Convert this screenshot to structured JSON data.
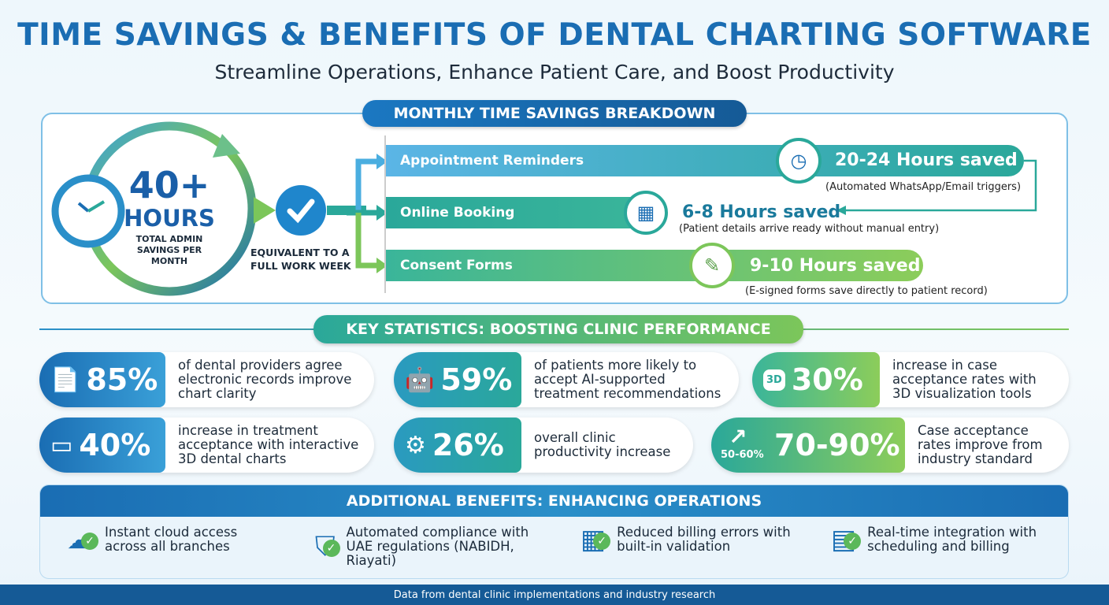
{
  "title": "TIME SAVINGS & BENEFITS OF DENTAL CHARTING SOFTWARE",
  "subtitle": "Streamline Operations, Enhance Patient Care, and Boost Productivity",
  "monthly": {
    "header": "MONTHLY TIME SAVINGS BREAKDOWN",
    "big_number": "40+",
    "big_unit": "HOURS",
    "big_caption": "TOTAL ADMIN SAVINGS PER MONTH",
    "equivalent": "EQUIVALENT TO A FULL WORK WEEK",
    "items": [
      {
        "label": "Appointment Reminders",
        "saved": "20-24 Hours saved",
        "note": "(Automated WhatsApp/Email triggers)",
        "icon": "clock-icon"
      },
      {
        "label": "Online Booking",
        "saved": "6-8 Hours saved",
        "note": "(Patient details arrive ready without manual entry)",
        "icon": "calendar-icon"
      },
      {
        "label": "Consent Forms",
        "saved": "9-10 Hours saved",
        "note": "(E-signed forms save directly to patient record)",
        "icon": "signed-form-icon"
      }
    ]
  },
  "stats": {
    "header": "KEY STATISTICS: BOOSTING CLINIC PERFORMANCE",
    "cards": [
      {
        "value": "85%",
        "text": "of dental providers agree electronic records improve chart clarity",
        "icon": "document-icon"
      },
      {
        "value": "59%",
        "text": "of patients more likely to accept AI-supported treatment recommendations",
        "icon": "robot-icon"
      },
      {
        "value": "30%",
        "text": "increase in case acceptance rates with 3D visualization tools",
        "icon": "tooth-3d-icon",
        "badge": "3D"
      },
      {
        "value": "40%",
        "text": "increase in treatment acceptance with interactive 3D dental charts",
        "icon": "tablet-touch-icon"
      },
      {
        "value": "26%",
        "text": "overall clinic productivity increase",
        "icon": "gear-chart-icon"
      },
      {
        "value": "70-90%",
        "text": "Case acceptance rates improve from industry standard",
        "icon": "trend-up-icon",
        "baseline": "50-60%"
      }
    ]
  },
  "benefits": {
    "header": "ADDITIONAL BENEFITS: ENHANCING OPERATIONS",
    "items": [
      {
        "text": "Instant cloud access across all branches",
        "icon": "cloud-upload-icon"
      },
      {
        "text": "Automated compliance with UAE regulations (NABIDH, Riayati)",
        "icon": "shield-lock-icon"
      },
      {
        "text": "Reduced billing errors with built-in validation",
        "icon": "calculator-icon"
      },
      {
        "text": "Real-time integration with scheduling and billing",
        "icon": "calendar-icon"
      }
    ]
  },
  "footer": "Data from dental clinic implementations and industry research",
  "colors": {
    "primary_blue": "#1a6db3",
    "teal": "#2aa89a",
    "green": "#7cc65a",
    "dark_blue": "#155a96"
  }
}
